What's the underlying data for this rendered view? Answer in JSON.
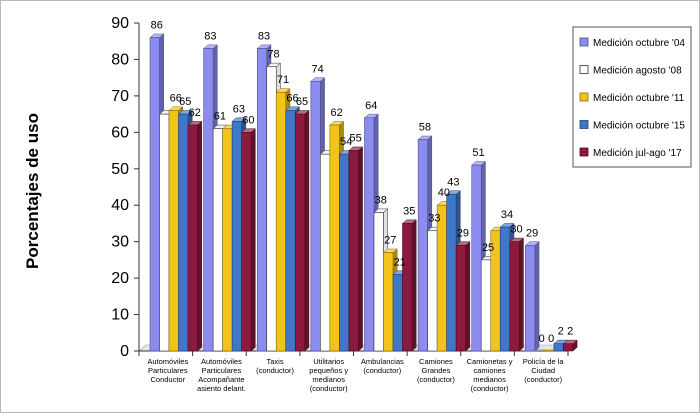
{
  "chart_data": {
    "type": "bar",
    "title": "",
    "xlabel": "",
    "ylabel": "Porcentajes de uso",
    "ylim": [
      0,
      90
    ],
    "yticks": [
      0,
      10,
      20,
      30,
      40,
      50,
      60,
      70,
      80,
      90
    ],
    "grid": false,
    "legend_position": "right",
    "categories": [
      [
        "Automóviles",
        "Particulares",
        "Conductor"
      ],
      [
        "Automóviles",
        "Particulares",
        "Acompañante",
        "asiento delant."
      ],
      [
        "Taxis",
        "(conductor)"
      ],
      [
        "Utilitarios",
        "pequeños y",
        "medianos",
        "(conductor)"
      ],
      [
        "Ambulancias",
        "(conductor)"
      ],
      [
        "Camiones",
        "Grandes",
        "(conductor)"
      ],
      [
        "Camionetas y",
        "camiones",
        "medianos",
        "(conductor)"
      ],
      [
        "Policía de la",
        "Ciudad",
        "(conductor)"
      ]
    ],
    "series": [
      {
        "name": "Medición octubre '04",
        "color": "#8c8cf0",
        "values": [
          86,
          83,
          83,
          74,
          64,
          58,
          51,
          29
        ]
      },
      {
        "name": "Medición agosto '08",
        "color": "#ffffff",
        "values": [
          65,
          61,
          78,
          54,
          38,
          33,
          25,
          0
        ]
      },
      {
        "name": "Medición octubre '11",
        "color": "#f2c318",
        "values": [
          66,
          61,
          71,
          62,
          27,
          40,
          33,
          0
        ]
      },
      {
        "name": "Medición octubre '15",
        "color": "#3f78c8",
        "values": [
          65,
          63,
          66,
          54,
          21,
          43,
          34,
          2
        ]
      },
      {
        "name": "Medición jul-ago '17",
        "color": "#8b1a3e",
        "values": [
          62,
          60,
          65,
          55,
          35,
          29,
          30,
          2
        ]
      }
    ],
    "data_labels": [
      [
        "86",
        null,
        "66",
        "65",
        "62"
      ],
      [
        "83",
        "61",
        "",
        "63",
        "60"
      ],
      [
        "83",
        "78",
        "71",
        "66",
        "65"
      ],
      [
        "74",
        null,
        "62",
        "54",
        "55"
      ],
      [
        "64",
        "38",
        "27",
        "21",
        "35"
      ],
      [
        "58",
        "33",
        "40",
        "43",
        "29"
      ],
      [
        "51",
        "25",
        null,
        "34",
        "30"
      ],
      [
        "29",
        "0",
        "0",
        "2",
        "2"
      ]
    ]
  }
}
